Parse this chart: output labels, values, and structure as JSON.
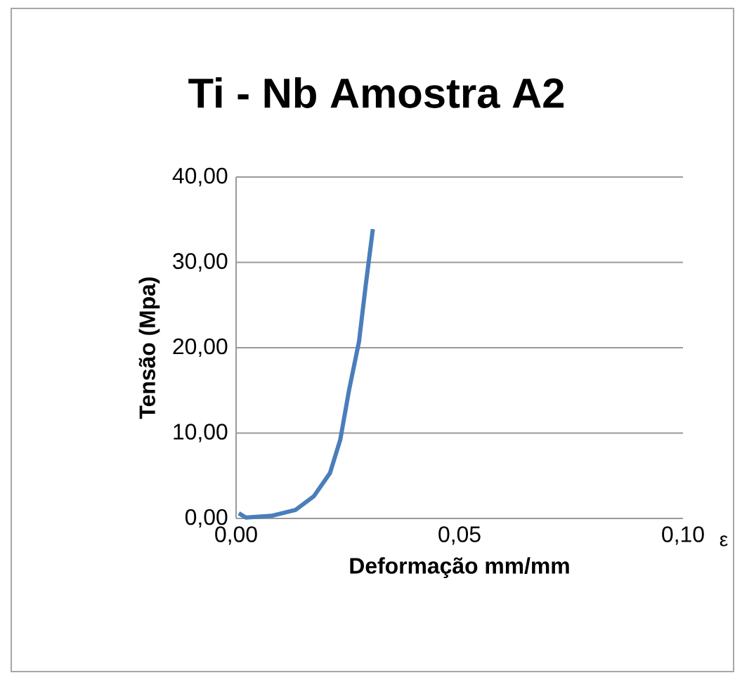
{
  "chart_data": {
    "type": "line",
    "title": "Ti - Nb Amostra A2",
    "xlabel": "Deformação mm/mm",
    "ylabel": "Tensão (Mpa)",
    "annotations": [
      "ε"
    ],
    "x": [
      0.0006,
      0.0022,
      0.0079,
      0.0133,
      0.0174,
      0.021,
      0.0233,
      0.0253,
      0.0275,
      0.029,
      0.0306
    ],
    "series": [
      {
        "color": "#4a7ebb",
        "values": [
          0.6,
          0.1,
          0.3,
          1.0,
          2.6,
          5.3,
          9.2,
          15.1,
          20.7,
          27.3,
          33.9
        ]
      }
    ],
    "xlim": [
      0,
      0.1
    ],
    "ylim": [
      0,
      40
    ],
    "xticks": [
      {
        "value": 0,
        "label": "0,00"
      },
      {
        "value": 0.05,
        "label": "0,05"
      },
      {
        "value": 0.1,
        "label": "0,10"
      }
    ],
    "yticks": [
      {
        "value": 0,
        "label": "0,00"
      },
      {
        "value": 10,
        "label": "10,00"
      },
      {
        "value": 20,
        "label": "20,00"
      },
      {
        "value": 30,
        "label": "30,00"
      },
      {
        "value": 40,
        "label": "40,00"
      }
    ],
    "grid": "y",
    "marker": "none",
    "line_style": "solid"
  }
}
